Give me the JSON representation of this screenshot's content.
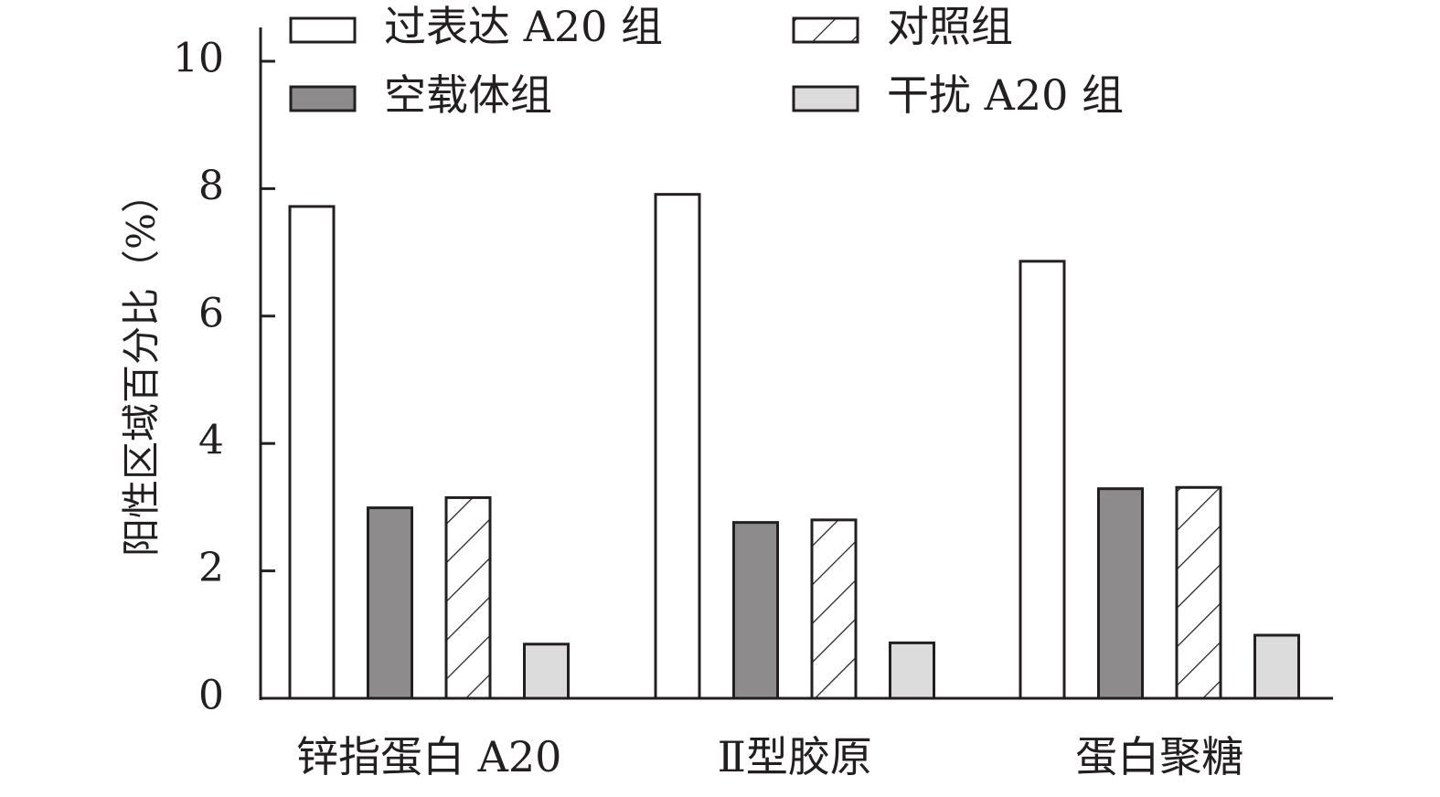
{
  "chart_data": {
    "type": "bar",
    "ylabel": "阳性区域百分比（%）",
    "ylim": [
      0,
      10.5
    ],
    "yticks": [
      0,
      2,
      4,
      6,
      8,
      10
    ],
    "grid": false,
    "legend_position": "top",
    "categories": [
      "锌指蛋白 A20",
      "Ⅱ型胶原",
      "蛋白聚糖"
    ],
    "series": [
      {
        "name": "过表达 A20 组",
        "pattern": "white",
        "values": [
          7.72,
          7.91,
          6.86
        ]
      },
      {
        "name": "空载体组",
        "pattern": "dark-gray",
        "values": [
          2.99,
          2.76,
          3.29
        ]
      },
      {
        "name": "对照组",
        "pattern": "hatch",
        "values": [
          3.15,
          2.8,
          3.31
        ]
      },
      {
        "name": "干扰 A20 组",
        "pattern": "light-gray",
        "values": [
          0.85,
          0.87,
          0.99
        ]
      }
    ]
  },
  "colors": {
    "white": "#ffffff",
    "dark-gray": "#8d8b8c",
    "light-gray": "#dcdcdc",
    "stroke": "#231f20"
  }
}
